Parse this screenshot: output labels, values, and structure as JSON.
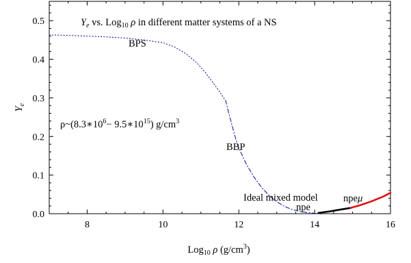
{
  "chart_data": {
    "type": "line",
    "title": {
      "main_symbol": "Y",
      "main_sub": "e",
      "vs_text": " vs. Log",
      "log_sub": "10",
      "rho": " ρ",
      "rest": " in different matter systems of a NS"
    },
    "xlabel": {
      "prefix": "Log",
      "sub": "10",
      "rho": " ρ",
      "units": " (g/cm",
      "sup": "3",
      "close": ")"
    },
    "ylabel": {
      "symbol": "Y",
      "sub": "e"
    },
    "xlim": [
      7,
      16
    ],
    "ylim": [
      0,
      0.55
    ],
    "xticks": [
      8,
      10,
      12,
      14,
      16
    ],
    "yticks": [
      0.0,
      0.1,
      0.2,
      0.3,
      0.4,
      0.5
    ],
    "ytick_labels": [
      "0.0",
      "0.1",
      "0.2",
      "0.3",
      "0.4",
      "0.5"
    ],
    "grid": false,
    "annotations": {
      "range_prefix": "ρ~(8.3∗10",
      "range_exp1": "6",
      "range_mid": "− 9.5∗10",
      "range_exp2": "15",
      "range_units": ") g/cm",
      "range_exp3": "3",
      "bps": "BPS",
      "bbp": "BBP",
      "ideal": "Ideal mixed model",
      "npe": "npe",
      "npemu_prefix": "npe",
      "npemu_mu": "μ"
    },
    "series": [
      {
        "name": "BPS",
        "color": "#1a1a99",
        "style": "dotted",
        "x": [
          7.0,
          7.5,
          8.0,
          8.5,
          9.0,
          9.5,
          10.0,
          10.3,
          10.6,
          10.9,
          11.1,
          11.3,
          11.5,
          11.6,
          11.65
        ],
        "y": [
          0.463,
          0.462,
          0.46,
          0.458,
          0.455,
          0.45,
          0.443,
          0.432,
          0.415,
          0.39,
          0.368,
          0.342,
          0.315,
          0.3,
          0.294
        ]
      },
      {
        "name": "BBP",
        "color": "#1a1a99",
        "style": "dashdot",
        "x": [
          11.65,
          11.75,
          11.9,
          12.0,
          12.2,
          12.4,
          12.6,
          12.8,
          13.0,
          13.2,
          13.4,
          13.6,
          13.8,
          14.0,
          14.1
        ],
        "y": [
          0.294,
          0.255,
          0.2,
          0.17,
          0.128,
          0.095,
          0.068,
          0.047,
          0.031,
          0.019,
          0.011,
          0.006,
          0.003,
          0.001,
          0.0005
        ]
      },
      {
        "name": "npe",
        "color": "#000000",
        "style": "solid",
        "x": [
          14.1,
          14.4,
          14.7,
          14.95
        ],
        "y": [
          0.002,
          0.006,
          0.011,
          0.015
        ]
      },
      {
        "name": "npeμ",
        "color": "#dd1111",
        "style": "solid",
        "x": [
          14.95,
          15.2,
          15.5,
          15.8,
          16.0
        ],
        "y": [
          0.015,
          0.022,
          0.032,
          0.044,
          0.054
        ]
      }
    ]
  }
}
